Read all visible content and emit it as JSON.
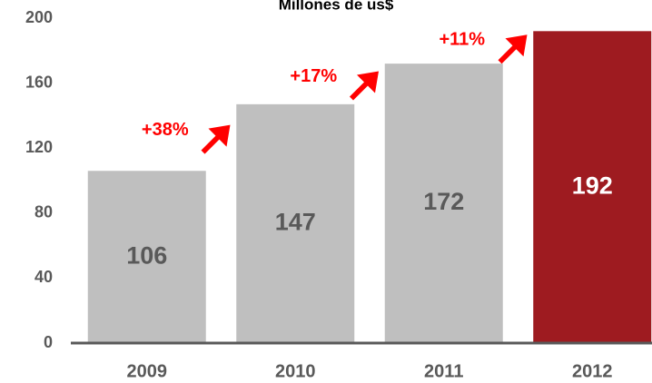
{
  "chart_data": {
    "type": "bar",
    "title": "Millones de us$",
    "categories": [
      "2009",
      "2010",
      "2011",
      "2012"
    ],
    "values": [
      106,
      147,
      172,
      192
    ],
    "colors": [
      "#bfbfbf",
      "#bfbfbf",
      "#bfbfbf",
      "#9e1b20"
    ],
    "annotations": [
      "+38%",
      "+17%",
      "+11%"
    ],
    "annotation_color": "#ff0000",
    "ylim": [
      0,
      200
    ],
    "yticks": [
      0,
      40,
      80,
      120,
      160,
      200
    ],
    "grid": false
  }
}
